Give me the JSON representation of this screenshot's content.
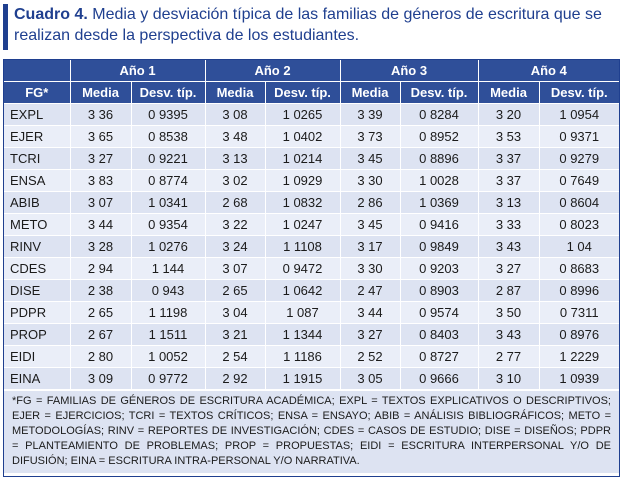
{
  "caption": {
    "label": "Cuadro 4.",
    "text": "Media y desviación típica de las familias de géneros de escritura que se realizan desde la perspectiva de los estudiantes."
  },
  "table": {
    "corner": "FG*",
    "years": [
      "Año 1",
      "Año 2",
      "Año 3",
      "Año 4"
    ],
    "stat_headers": [
      "Media",
      "Desv. típ."
    ],
    "rows": [
      {
        "fg": "EXPL",
        "values": [
          "3 36",
          "0 9395",
          "3 08",
          "1 0265",
          "3 39",
          "0 8284",
          "3 20",
          "1 0954"
        ]
      },
      {
        "fg": "EJER",
        "values": [
          "3 65",
          "0 8538",
          "3 48",
          "1 0402",
          "3 73",
          "0 8952",
          "3 53",
          "0 9371"
        ]
      },
      {
        "fg": "TCRI",
        "values": [
          "3 27",
          "0 9221",
          "3 13",
          "1 0214",
          "3 45",
          "0 8896",
          "3 37",
          "0 9279"
        ]
      },
      {
        "fg": "ENSA",
        "values": [
          "3 83",
          "0 8774",
          "3 02",
          "1 0929",
          "3 30",
          "1 0028",
          "3 37",
          "0 7649"
        ]
      },
      {
        "fg": "ABIB",
        "values": [
          "3 07",
          "1 0341",
          "2 68",
          "1 0832",
          "2 86",
          "1 0369",
          "3 13",
          "0 8604"
        ]
      },
      {
        "fg": "METO",
        "values": [
          "3 44",
          "0 9354",
          "3 22",
          "1 0247",
          "3 45",
          "0 9416",
          "3 33",
          "0 8023"
        ]
      },
      {
        "fg": "RINV",
        "values": [
          "3 28",
          "1 0276",
          "3 24",
          "1 1108",
          "3 17",
          "0 9849",
          "3 43",
          "1 04"
        ]
      },
      {
        "fg": "CDES",
        "values": [
          "2 94",
          "1 144",
          "3 07",
          "0 9472",
          "3 30",
          "0 9203",
          "3 27",
          "0 8683"
        ]
      },
      {
        "fg": "DISE",
        "values": [
          "2 38",
          "0 943",
          "2 65",
          "1 0642",
          "2 47",
          "0 8903",
          "2 87",
          "0 8996"
        ]
      },
      {
        "fg": "PDPR",
        "values": [
          "2 65",
          "1 1198",
          "3 04",
          "1 087",
          "3 44",
          "0 9574",
          "3 50",
          "0 7311"
        ]
      },
      {
        "fg": "PROP",
        "values": [
          "2 67",
          "1 1511",
          "3 21",
          "1 1344",
          "3 27",
          "0 8403",
          "3 43",
          "0 8976"
        ]
      },
      {
        "fg": "EIDI",
        "values": [
          "2 80",
          "1 0052",
          "2 54",
          "1 1186",
          "2 52",
          "0 8727",
          "2 77",
          "1 2229"
        ]
      },
      {
        "fg": "EINA",
        "values": [
          "3 09",
          "0 9772",
          "2 92",
          "1 1915",
          "3 05",
          "0 9666",
          "3 10",
          "1 0939"
        ]
      }
    ]
  },
  "footnote": "*FG = FAMILIAS DE GÉNEROS DE ESCRITURA ACADÉMICA; EXPL = TEXTOS EXPLICATIVOS O DESCRIPTIVOS; EJER = EJERCICIOS; TCRI = TEXTOS CRÍTICOS; ENSA = ENSAYO; ABIB = ANÁLISIS BIBLIOGRÁFICOS; METO = METODOLOGÍAS; RINV = REPORTES DE INVESTIGACIÓN; CDES = CASOS DE ESTUDIO; DISE = DISEÑOS; PDPR = PLANTEAMIENTO DE PROBLEMAS; PROP = PROPUESTAS; EIDI = ESCRITURA INTERPERSONAL Y/O DE DIFUSIÓN; EINA = ESCRITURA INTRA-PERSONAL Y/O NARRATIVA.",
  "colors": {
    "accent": "#1f3f8f",
    "header_bg": "#2f4f99",
    "row_bg": "#dde3f2",
    "row_bg_alt": "#eaeef8"
  }
}
